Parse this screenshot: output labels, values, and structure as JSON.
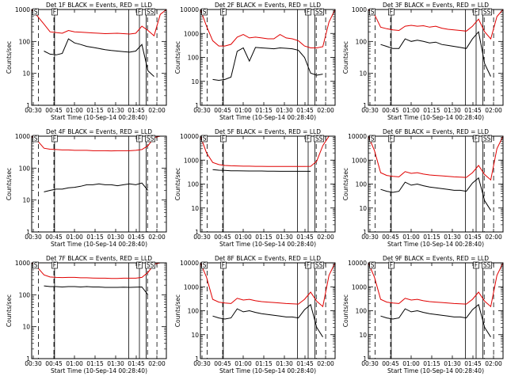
{
  "figure": {
    "xlabel": "Start Time (10-Sep-14 00:28:40)",
    "ylabel": "Counts/sec"
  },
  "colors": {
    "events": "#000000",
    "lld": "#e00000",
    "axes": "#000000"
  },
  "chart_data": [
    {
      "type": "line",
      "title": "Det 1F BLACK = Events, RED = LLD",
      "x_ticks": [
        "00:30",
        "00:45",
        "01:00",
        "01:15",
        "01:30",
        "01:45",
        "02:00"
      ],
      "y_ticks": [
        "1",
        "10",
        "100",
        "1000"
      ],
      "ylim": [
        1,
        1000
      ],
      "y_scale": "log",
      "flag_labels": [
        "S",
        "F",
        "F",
        "SS"
      ],
      "series": [
        {
          "values": [
            null,
            null,
            50,
            40,
            38,
            42,
            120,
            90,
            80,
            70,
            65,
            60,
            55,
            52,
            50,
            48,
            46,
            50,
            80,
            12,
            8,
            null,
            null
          ]
        },
        {
          "values": [
            1000,
            600,
            350,
            200,
            190,
            180,
            220,
            200,
            195,
            190,
            185,
            180,
            175,
            178,
            180,
            175,
            170,
            180,
            300,
            220,
            150,
            700,
            1000
          ]
        }
      ]
    },
    {
      "type": "line",
      "title": "Det 2F BLACK = Events, RED = LLD",
      "x_ticks": [
        "00:30",
        "00:45",
        "01:00",
        "01:15",
        "01:30",
        "01:45",
        "02:00"
      ],
      "y_ticks": [
        "1",
        "10",
        "100",
        "1000",
        "10000"
      ],
      "ylim": [
        1,
        10000
      ],
      "y_scale": "log",
      "flag_labels": [
        "S",
        "F",
        "F",
        "SS"
      ],
      "series": [
        {
          "values": [
            null,
            null,
            12,
            11,
            12,
            15,
            180,
            250,
            70,
            260,
            250,
            240,
            230,
            250,
            240,
            230,
            200,
            100,
            22,
            18,
            20,
            null,
            null
          ]
        },
        {
          "values": [
            10000,
            2000,
            500,
            300,
            300,
            350,
            700,
            900,
            650,
            700,
            650,
            600,
            600,
            900,
            650,
            600,
            500,
            300,
            250,
            250,
            280,
            3000,
            10000
          ]
        }
      ]
    },
    {
      "type": "line",
      "title": "Det 3F BLACK = Events, RED = LLD",
      "x_ticks": [
        "00:30",
        "00:45",
        "01:00",
        "01:15",
        "01:30",
        "01:45",
        "02:00"
      ],
      "y_ticks": [
        "1",
        "10",
        "100",
        "1000"
      ],
      "ylim": [
        1,
        1000
      ],
      "y_scale": "log",
      "flag_labels": [
        "S",
        "F",
        "F",
        "SS"
      ],
      "series": [
        {
          "values": [
            null,
            null,
            80,
            70,
            60,
            60,
            120,
            100,
            110,
            100,
            90,
            95,
            80,
            75,
            70,
            65,
            60,
            120,
            200,
            20,
            8,
            null,
            null
          ]
        },
        {
          "values": [
            1000,
            700,
            280,
            250,
            230,
            220,
            300,
            320,
            300,
            310,
            280,
            300,
            260,
            240,
            230,
            220,
            210,
            300,
            500,
            200,
            120,
            600,
            1000
          ]
        }
      ]
    },
    {
      "type": "line",
      "title": "Det 4F BLACK = Events, RED = LLD",
      "x_ticks": [
        "00:30",
        "00:45",
        "01:00",
        "01:15",
        "01:30",
        "01:45",
        "02:00"
      ],
      "y_ticks": [
        "1",
        "10",
        "100",
        "1000"
      ],
      "ylim": [
        1,
        1000
      ],
      "y_scale": "log",
      "flag_labels": [
        "S",
        "F",
        "F",
        "SS"
      ],
      "series": [
        {
          "values": [
            null,
            null,
            18,
            20,
            22,
            22,
            24,
            25,
            27,
            30,
            30,
            32,
            30,
            30,
            28,
            30,
            32,
            30,
            34,
            20,
            null,
            null,
            null
          ]
        },
        {
          "values": [
            1000,
            700,
            420,
            390,
            380,
            370,
            370,
            360,
            360,
            360,
            350,
            350,
            350,
            345,
            350,
            350,
            350,
            360,
            380,
            500,
            900,
            1000,
            1000
          ]
        }
      ]
    },
    {
      "type": "line",
      "title": "Det 5F BLACK = Events, RED = LLD",
      "x_ticks": [
        "00:30",
        "00:45",
        "01:00",
        "01:15",
        "01:30",
        "01:45",
        "02:00"
      ],
      "y_ticks": [
        "1",
        "10",
        "100",
        "1000",
        "10000"
      ],
      "ylim": [
        1,
        10000
      ],
      "y_scale": "log",
      "flag_labels": [
        "S",
        "F",
        "F",
        "SS"
      ],
      "series": [
        {
          "values": [
            null,
            null,
            400,
            380,
            370,
            360,
            360,
            355,
            350,
            350,
            350,
            345,
            345,
            340,
            340,
            340,
            340,
            340,
            340,
            null,
            null,
            null,
            null
          ]
        },
        {
          "values": [
            10000,
            2000,
            800,
            650,
            600,
            580,
            570,
            560,
            560,
            550,
            550,
            545,
            540,
            540,
            540,
            540,
            540,
            540,
            550,
            900,
            4000,
            10000,
            10000
          ]
        }
      ]
    },
    {
      "type": "line",
      "title": "Det 6F BLACK = Events, RED = LLD",
      "x_ticks": [
        "00:30",
        "00:45",
        "01:00",
        "01:15",
        "01:30",
        "01:45",
        "02:00"
      ],
      "y_ticks": [
        "1",
        "10",
        "100",
        "1000",
        "10000"
      ],
      "ylim": [
        1,
        10000
      ],
      "y_scale": "log",
      "flag_labels": [
        "S",
        "F",
        "F",
        "SS"
      ],
      "series": [
        {
          "values": [
            null,
            null,
            60,
            50,
            45,
            50,
            120,
            90,
            100,
            85,
            75,
            70,
            65,
            60,
            55,
            55,
            50,
            110,
            180,
            20,
            8,
            null,
            null
          ]
        },
        {
          "values": [
            10000,
            2500,
            300,
            230,
            210,
            200,
            330,
            280,
            300,
            260,
            240,
            230,
            220,
            210,
            200,
            195,
            190,
            300,
            600,
            250,
            150,
            3000,
            10000
          ]
        }
      ]
    },
    {
      "type": "line",
      "title": "Det 7F BLACK = Events, RED = LLD",
      "x_ticks": [
        "00:30",
        "00:45",
        "01:00",
        "01:15",
        "01:30",
        "01:45",
        "02:00"
      ],
      "y_ticks": [
        "1",
        "10",
        "100",
        "1000"
      ],
      "ylim": [
        1,
        1000
      ],
      "y_scale": "log",
      "flag_labels": [
        "S",
        "F",
        "F",
        "SS"
      ],
      "series": [
        {
          "values": [
            null,
            null,
            190,
            180,
            180,
            175,
            180,
            180,
            175,
            180,
            175,
            175,
            170,
            170,
            170,
            172,
            170,
            172,
            175,
            100,
            null,
            null,
            null
          ]
        },
        {
          "values": [
            1000,
            700,
            420,
            360,
            350,
            345,
            350,
            350,
            340,
            340,
            335,
            330,
            330,
            325,
            325,
            330,
            330,
            330,
            350,
            500,
            900,
            1000,
            1000
          ]
        }
      ]
    },
    {
      "type": "line",
      "title": "Det 8F BLACK = Events, RED = LLD",
      "x_ticks": [
        "00:30",
        "00:45",
        "01:00",
        "01:15",
        "01:30",
        "01:45",
        "02:00"
      ],
      "y_ticks": [
        "1",
        "10",
        "100",
        "1000",
        "10000"
      ],
      "ylim": [
        1,
        10000
      ],
      "y_scale": "log",
      "flag_labels": [
        "S",
        "F",
        "F",
        "SS"
      ],
      "series": [
        {
          "values": [
            null,
            null,
            60,
            50,
            45,
            50,
            120,
            90,
            100,
            85,
            75,
            70,
            65,
            60,
            55,
            55,
            50,
            110,
            180,
            20,
            8,
            null,
            null
          ]
        },
        {
          "values": [
            10000,
            2500,
            300,
            230,
            210,
            200,
            330,
            280,
            300,
            260,
            240,
            230,
            220,
            210,
            200,
            195,
            190,
            300,
            600,
            250,
            150,
            3000,
            10000
          ]
        }
      ]
    },
    {
      "type": "line",
      "title": "Det 9F BLACK = Events, RED = LLD",
      "x_ticks": [
        "00:30",
        "00:45",
        "01:00",
        "01:15",
        "01:30",
        "01:45",
        "02:00"
      ],
      "y_ticks": [
        "1",
        "10",
        "100",
        "1000",
        "10000"
      ],
      "ylim": [
        1,
        10000
      ],
      "y_scale": "log",
      "flag_labels": [
        "S",
        "F",
        "F",
        "SS"
      ],
      "series": [
        {
          "values": [
            null,
            null,
            60,
            50,
            45,
            50,
            120,
            90,
            100,
            85,
            75,
            70,
            65,
            60,
            55,
            55,
            50,
            110,
            180,
            20,
            8,
            null,
            null
          ]
        },
        {
          "values": [
            10000,
            2500,
            300,
            230,
            210,
            200,
            330,
            280,
            300,
            260,
            240,
            230,
            220,
            210,
            200,
            195,
            190,
            300,
            600,
            250,
            150,
            3000,
            10000
          ]
        }
      ]
    }
  ]
}
